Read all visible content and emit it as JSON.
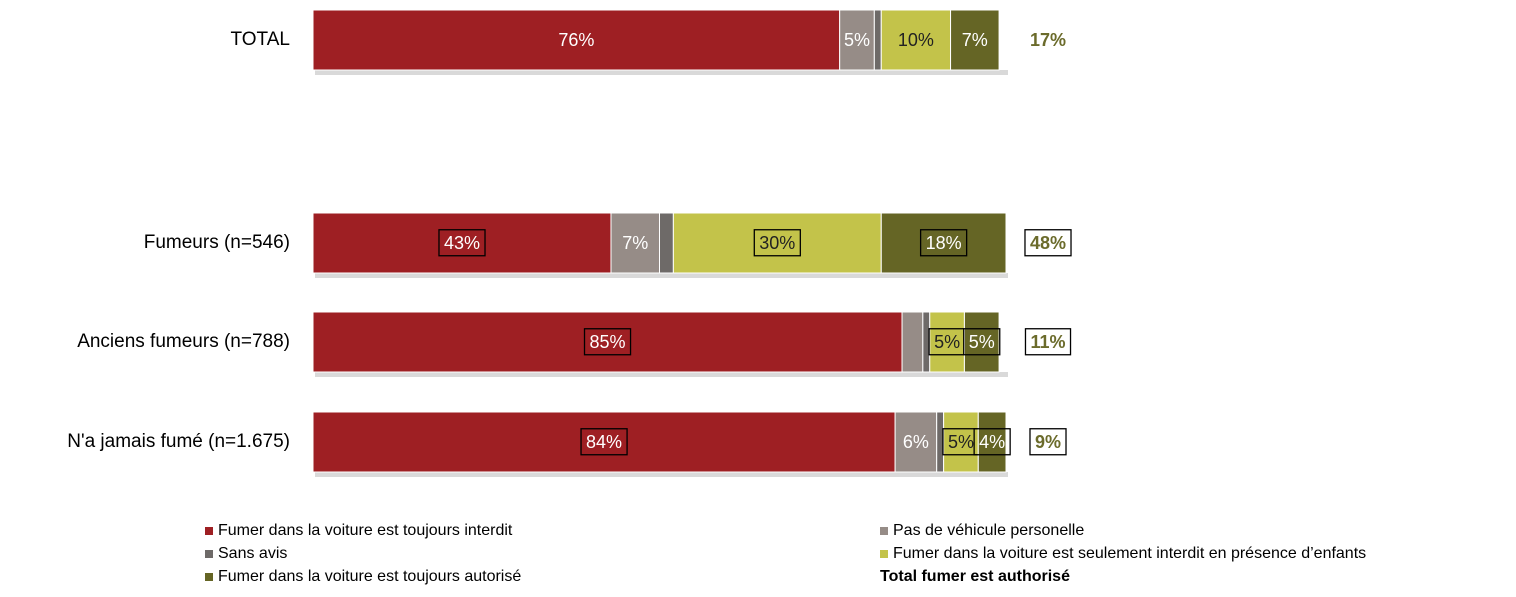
{
  "chart_data": {
    "type": "stacked-bar-horizontal",
    "categories": [
      "TOTAL",
      "Fumeurs (n=546)",
      "Anciens fumeurs (n=788)",
      "N'a jamais fumé (n=1.675)"
    ],
    "xlim": [
      0,
      100
    ],
    "series": [
      {
        "name": "Fumer dans la voiture est toujours interdit",
        "color": "#9e1f23",
        "label_color": "#ffffff",
        "values": [
          76,
          43,
          85,
          84
        ],
        "value_labels": [
          "76%",
          "43%",
          "85%",
          "84%"
        ],
        "boxed": [
          false,
          true,
          true,
          true
        ]
      },
      {
        "name": "Pas de véhicule personelle",
        "color": "#968c87",
        "label_color": "#ffffff",
        "values": [
          5,
          7,
          3,
          6
        ],
        "value_labels": [
          "5%",
          "7%",
          null,
          "6%"
        ],
        "boxed": [
          false,
          false,
          false,
          false
        ]
      },
      {
        "name": "Sans avis",
        "color": "#6e6a68",
        "label_color": "#ffffff",
        "values": [
          1,
          2,
          1,
          1
        ],
        "value_labels": [
          null,
          null,
          null,
          null
        ],
        "boxed": [
          false,
          false,
          false,
          false
        ]
      },
      {
        "name": "Fumer dans la voiture est seulement interdit en présence d’enfants",
        "color": "#c3c34a",
        "label_color": "#222222",
        "values": [
          10,
          30,
          5,
          5
        ],
        "value_labels": [
          "10%",
          "30%",
          "5%",
          "5%"
        ],
        "boxed": [
          false,
          true,
          true,
          true
        ]
      },
      {
        "name": "Fumer dans la voiture est toujours autorisé",
        "color": "#656525",
        "label_color": "#ffffff",
        "values": [
          7,
          18,
          5,
          4
        ],
        "value_labels": [
          "7%",
          "18%",
          "5%",
          "4%"
        ],
        "boxed": [
          false,
          true,
          true,
          true
        ]
      }
    ],
    "totals": {
      "name": "Total fumer est authorisé",
      "color": "#6b6b2b",
      "values": [
        17,
        48,
        11,
        9
      ],
      "value_labels": [
        "17%",
        "48%",
        "11%",
        "9%"
      ],
      "boxed": [
        false,
        true,
        true,
        true
      ]
    }
  }
}
